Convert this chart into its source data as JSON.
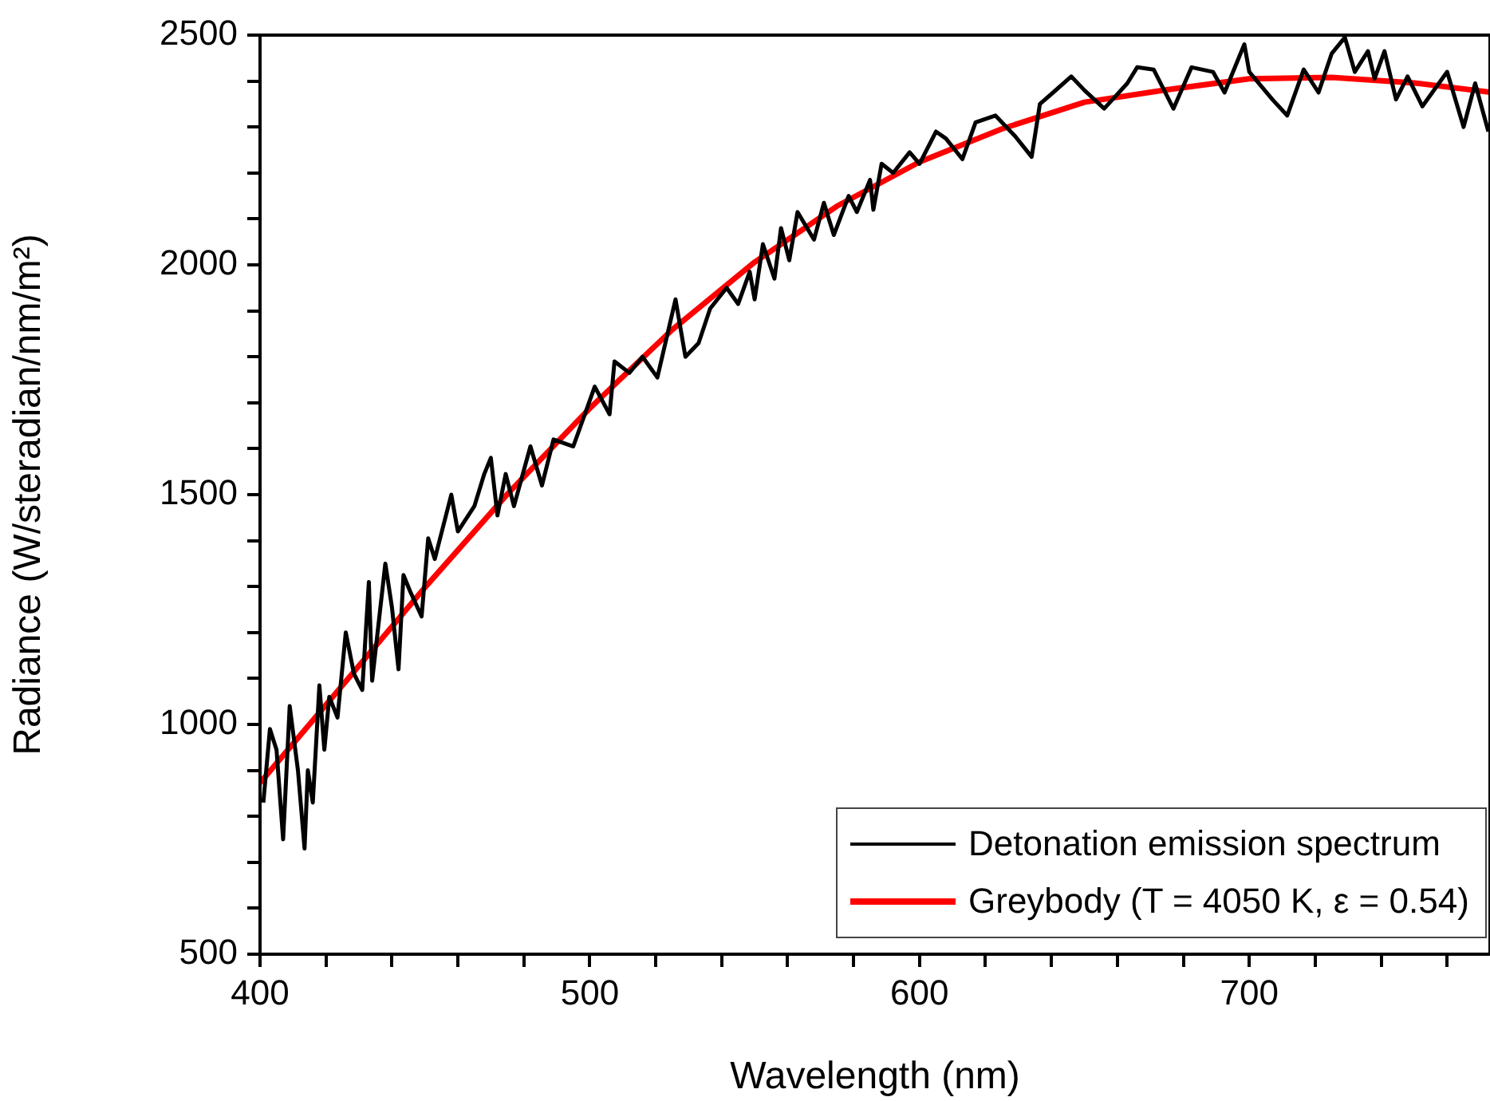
{
  "chart_data": {
    "type": "line",
    "xlabel": "Wavelength (nm)",
    "ylabel": "Radiance (W/steradian/nm/m²)",
    "xlim": [
      400,
      773
    ],
    "ylim": [
      500,
      2500
    ],
    "xticks": [
      400,
      {
        "value": 420,
        "label": null
      },
      {
        "value": 440,
        "label": null
      },
      {
        "value": 460,
        "label": null
      },
      {
        "value": 480,
        "label": null
      },
      500,
      {
        "value": 520,
        "label": null
      },
      {
        "value": 540,
        "label": null
      },
      {
        "value": 560,
        "label": null
      },
      {
        "value": 580,
        "label": null
      },
      600,
      {
        "value": 620,
        "label": null
      },
      {
        "value": 640,
        "label": null
      },
      {
        "value": 660,
        "label": null
      },
      {
        "value": 680,
        "label": null
      },
      700,
      {
        "value": 720,
        "label": null
      },
      {
        "value": 740,
        "label": null
      },
      {
        "value": 760,
        "label": null
      }
    ],
    "yticks": [
      500,
      {
        "value": 600,
        "label": null
      },
      {
        "value": 700,
        "label": null
      },
      {
        "value": 800,
        "label": null
      },
      {
        "value": 900,
        "label": null
      },
      1000,
      {
        "value": 1100,
        "label": null
      },
      {
        "value": 1200,
        "label": null
      },
      {
        "value": 1300,
        "label": null
      },
      {
        "value": 1400,
        "label": null
      },
      1500,
      {
        "value": 1600,
        "label": null
      },
      {
        "value": 1700,
        "label": null
      },
      {
        "value": 1800,
        "label": null
      },
      {
        "value": 1900,
        "label": null
      },
      2000,
      {
        "value": 2100,
        "label": null
      },
      {
        "value": 2200,
        "label": null
      },
      {
        "value": 2300,
        "label": null
      },
      {
        "value": 2400,
        "label": null
      },
      2500
    ],
    "grid": false,
    "legend": "bottom right",
    "marker": "none",
    "series": [
      {
        "name": "Detonation emission spectrum",
        "color": "#000000",
        "x": [
          401,
          403,
          405,
          407,
          409,
          411.5,
          413.5,
          414.5,
          416,
          418,
          419.5,
          421,
          423.5,
          426,
          428.5,
          431,
          433,
          434,
          438,
          440,
          442,
          443.5,
          445.5,
          449,
          451,
          453,
          458,
          460,
          465,
          468,
          470,
          472,
          474.5,
          477,
          482,
          485.5,
          489,
          495,
          501.5,
          506,
          507.5,
          512,
          516,
          520.5,
          526,
          529,
          533,
          536.5,
          541.5,
          545,
          548.5,
          550,
          552.5,
          556,
          558,
          560.5,
          563,
          568,
          571,
          574,
          578.5,
          581,
          585,
          586,
          588.5,
          592,
          597,
          600,
          605,
          608,
          613,
          617,
          623,
          629,
          634,
          636.5,
          640.5,
          646,
          650,
          656,
          663,
          666,
          671,
          677,
          682.5,
          689,
          692.5,
          698.5,
          700,
          707,
          711.5,
          716.5,
          721,
          725,
          729,
          732,
          736,
          738,
          741,
          744.5,
          748,
          752.5,
          760,
          765,
          768.5,
          772.5
        ],
        "values": [
          830,
          990,
          945,
          750,
          1040,
          900,
          730,
          900,
          830,
          1085,
          945,
          1060,
          1015,
          1200,
          1110,
          1075,
          1310,
          1095,
          1350,
          1255,
          1120,
          1325,
          1290,
          1235,
          1405,
          1360,
          1500,
          1420,
          1475,
          1545,
          1580,
          1455,
          1545,
          1475,
          1605,
          1520,
          1620,
          1605,
          1735,
          1675,
          1790,
          1765,
          1800,
          1755,
          1925,
          1800,
          1830,
          1905,
          1950,
          1915,
          1985,
          1925,
          2045,
          1970,
          2080,
          2010,
          2115,
          2055,
          2135,
          2065,
          2150,
          2115,
          2185,
          2120,
          2220,
          2200,
          2245,
          2220,
          2290,
          2275,
          2230,
          2310,
          2325,
          2280,
          2235,
          2350,
          2375,
          2410,
          2380,
          2340,
          2395,
          2430,
          2425,
          2340,
          2430,
          2420,
          2375,
          2480,
          2420,
          2360,
          2325,
          2425,
          2375,
          2460,
          2495,
          2420,
          2465,
          2405,
          2465,
          2360,
          2410,
          2345,
          2420,
          2300,
          2395,
          2290
        ]
      },
      {
        "name": "Greybody (T = 4050 K, ε = 0.54)",
        "color": "#ff0000",
        "x": [
          400,
          425,
          450,
          475,
          500,
          525,
          550,
          575,
          600,
          625,
          650,
          675,
          700,
          725,
          750,
          773
        ],
        "values": [
          873,
          1085,
          1298,
          1501,
          1688,
          1859,
          2006,
          2128,
          2224,
          2296,
          2354,
          2381,
          2405,
          2408,
          2396,
          2376
        ]
      }
    ]
  }
}
